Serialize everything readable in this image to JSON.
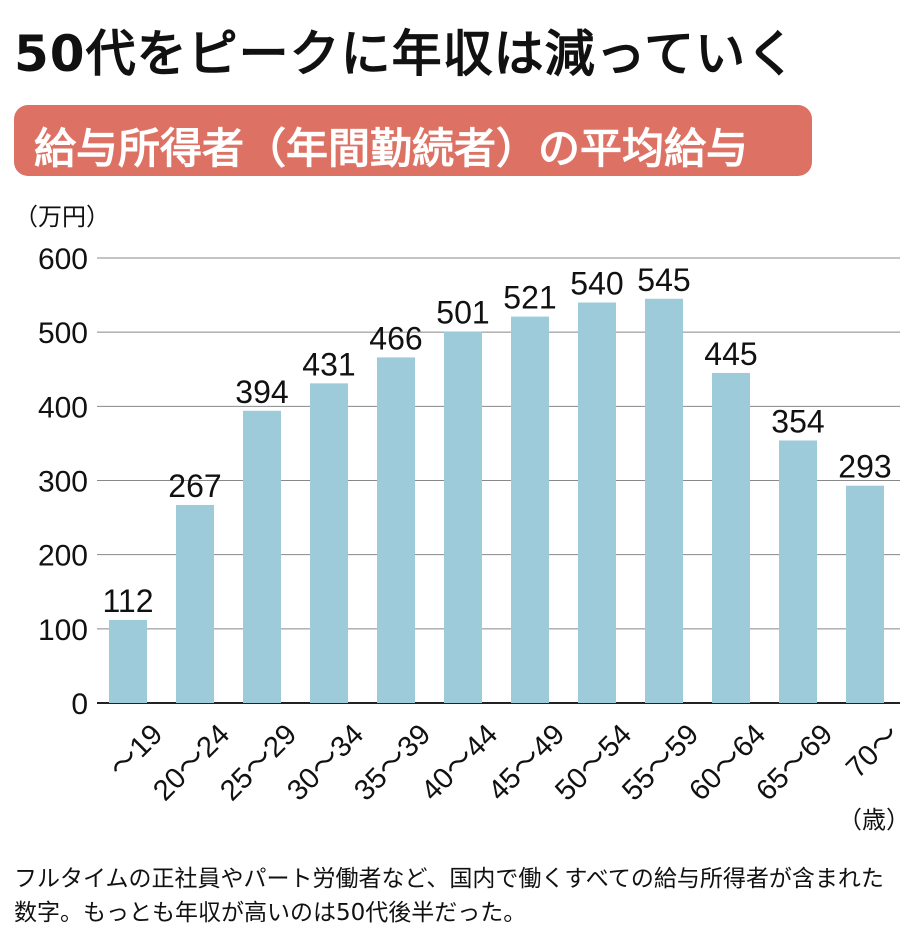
{
  "headline": "50代をピークに年収は減っていく",
  "subtitle": "給与所得者（年間勤続者）の平均給与",
  "note": "フルタイムの正社員やパート労働者など、国内で働くすべての給与所得者が含まれた数字。もっとも年収が高いのは50代後半だった。",
  "colors": {
    "bar": "#9ecbd9",
    "subtitle_bg": "#dd7264",
    "gridline": "#888888"
  },
  "chart_data": {
    "type": "bar",
    "ylabel": "（万円）",
    "xlabel": "（歳）",
    "ylim": [
      0,
      600
    ],
    "yticks": [
      0,
      100,
      200,
      300,
      400,
      500,
      600
    ],
    "grid": true,
    "categories": [
      "～19",
      "20～24",
      "25～29",
      "30～34",
      "35～39",
      "40～44",
      "45～49",
      "50～54",
      "55～59",
      "60～64",
      "65～69",
      "70～"
    ],
    "values": [
      112,
      267,
      394,
      431,
      466,
      501,
      521,
      540,
      545,
      445,
      354,
      293
    ]
  }
}
